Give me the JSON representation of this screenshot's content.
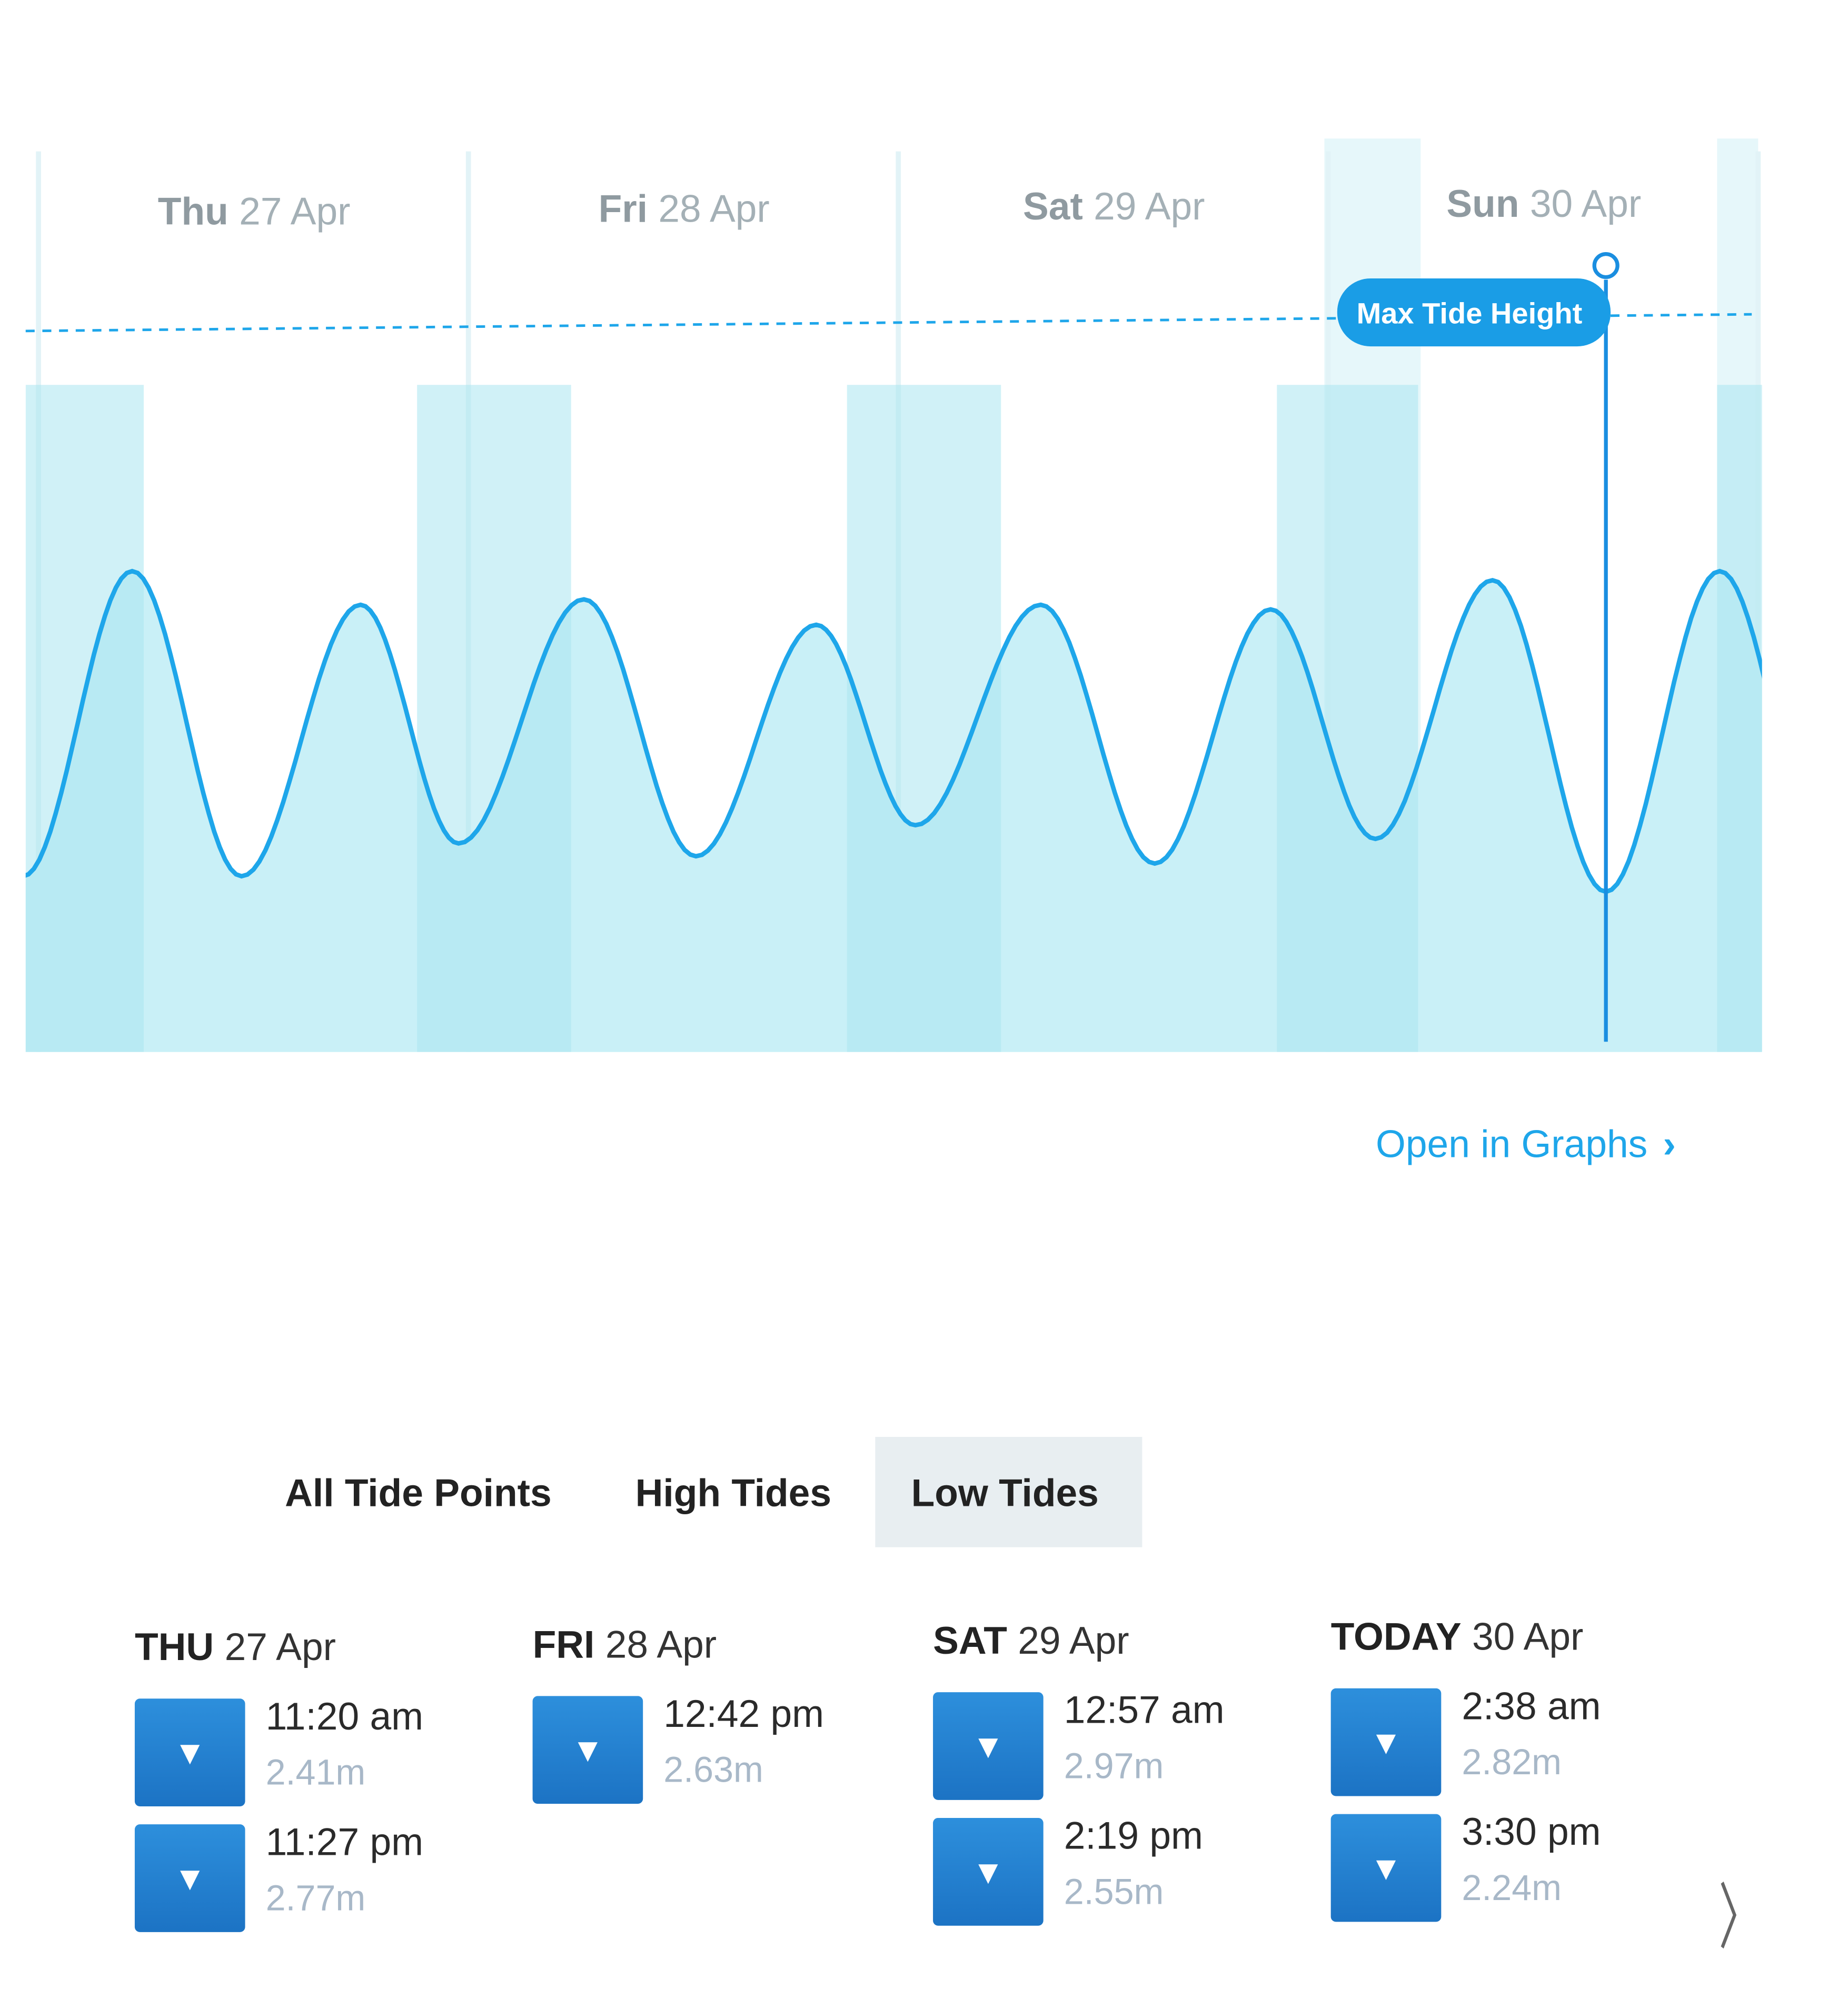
{
  "chart_data": {
    "type": "area",
    "days": [
      "Thu 27 Apr",
      "Fri 28 Apr",
      "Sat 29 Apr",
      "Sun 30 Apr"
    ],
    "day_labels": [
      {
        "day": "Thu",
        "date": "27 Apr"
      },
      {
        "day": "Fri",
        "date": "28 Apr"
      },
      {
        "day": "Sat",
        "date": "29 Apr"
      },
      {
        "day": "Sun",
        "date": "30 Apr"
      }
    ],
    "unit": "m",
    "tide_points": [
      {
        "day": 0,
        "time": "05:14",
        "type": "high",
        "height": 5.76
      },
      {
        "day": 0,
        "time": "11:20",
        "type": "low",
        "height": 2.41
      },
      {
        "day": 0,
        "time": "17:59",
        "type": "high",
        "height": 5.39
      },
      {
        "day": 0,
        "time": "23:27",
        "type": "low",
        "height": 2.77
      },
      {
        "day": 1,
        "time": "06:27",
        "type": "high",
        "height": 5.45
      },
      {
        "day": 1,
        "time": "12:42",
        "type": "low",
        "height": 2.63
      },
      {
        "day": 1,
        "time": "19:25",
        "type": "high",
        "height": 5.17
      },
      {
        "day": 2,
        "time": "00:57",
        "type": "low",
        "height": 2.97
      },
      {
        "day": 2,
        "time": "07:57",
        "type": "high",
        "height": 5.39
      },
      {
        "day": 2,
        "time": "14:19",
        "type": "low",
        "height": 2.55
      },
      {
        "day": 2,
        "time": "20:47",
        "type": "high",
        "height": 5.34
      },
      {
        "day": 3,
        "time": "02:38",
        "type": "low",
        "height": 2.82
      },
      {
        "day": 3,
        "time": "09:10",
        "type": "high",
        "height": 5.66
      },
      {
        "day": 3,
        "time": "15:30",
        "type": "low",
        "height": 2.24
      },
      {
        "day": 3,
        "time": "21:51",
        "type": "high",
        "height": 5.76
      }
    ],
    "current_marker": {
      "day": 3,
      "time": "15:30",
      "label": "Max Tide Height"
    },
    "line_color": "#1ea6ea",
    "fill_color": "#c9f0f7",
    "night_fill_color": "#a9e6f0",
    "grid": false
  },
  "link": {
    "label": "Open in Graphs",
    "chevron": "›"
  },
  "tabs": [
    {
      "label": "All Tide Points",
      "active": false
    },
    {
      "label": "High Tides",
      "active": false
    },
    {
      "label": "Low Tides",
      "active": true
    }
  ],
  "columns": [
    {
      "day": "THU",
      "date": "27 Apr",
      "entries": [
        {
          "icon": "low-tide-arrow",
          "time": "11:20 am",
          "height": "2.41m"
        },
        {
          "icon": "low-tide-arrow",
          "time": "11:27 pm",
          "height": "2.77m"
        }
      ]
    },
    {
      "day": "FRI",
      "date": "28 Apr",
      "entries": [
        {
          "icon": "low-tide-arrow",
          "time": "12:42 pm",
          "height": "2.63m"
        }
      ]
    },
    {
      "day": "SAT",
      "date": "29 Apr",
      "entries": [
        {
          "icon": "low-tide-arrow",
          "time": "12:57 am",
          "height": "2.97m"
        },
        {
          "icon": "low-tide-arrow",
          "time": "2:19 pm",
          "height": "2.55m"
        }
      ]
    },
    {
      "day": "TODAY",
      "date": "30 Apr",
      "entries": [
        {
          "icon": "low-tide-arrow",
          "time": "2:38 am",
          "height": "2.82m"
        },
        {
          "icon": "low-tide-arrow",
          "time": "3:30 pm",
          "height": "2.24m"
        }
      ]
    }
  ],
  "arrow_glyph": "▼",
  "next_glyph": "〉"
}
